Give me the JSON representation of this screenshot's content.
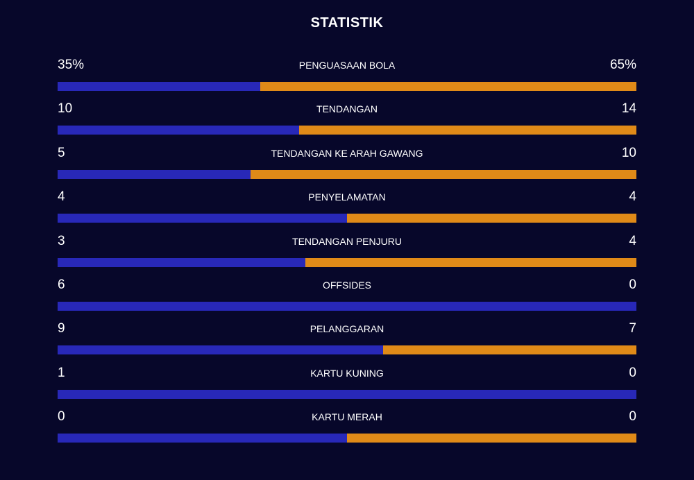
{
  "title": "STATISTIK",
  "colors": {
    "background": "#07072a",
    "home": "#2828b8",
    "away": "#e08a18"
  },
  "stats": [
    {
      "label": "PENGUASAAN BOLA",
      "home": "35%",
      "away": "65%",
      "home_value": 35,
      "away_value": 65
    },
    {
      "label": "TENDANGAN",
      "home": "10",
      "away": "14",
      "home_value": 10,
      "away_value": 14
    },
    {
      "label": "TENDANGAN KE ARAH GAWANG",
      "home": "5",
      "away": "10",
      "home_value": 5,
      "away_value": 10
    },
    {
      "label": "PENYELAMATAN",
      "home": "4",
      "away": "4",
      "home_value": 4,
      "away_value": 4
    },
    {
      "label": "TENDANGAN PENJURU",
      "home": "3",
      "away": "4",
      "home_value": 3,
      "away_value": 4
    },
    {
      "label": "OFFSIDES",
      "home": "6",
      "away": "0",
      "home_value": 6,
      "away_value": 0
    },
    {
      "label": "PELANGGARAN",
      "home": "9",
      "away": "7",
      "home_value": 9,
      "away_value": 7
    },
    {
      "label": "KARTU KUNING",
      "home": "1",
      "away": "0",
      "home_value": 1,
      "away_value": 0
    },
    {
      "label": "KARTU MERAH",
      "home": "0",
      "away": "0",
      "home_value": 0,
      "away_value": 0
    }
  ]
}
